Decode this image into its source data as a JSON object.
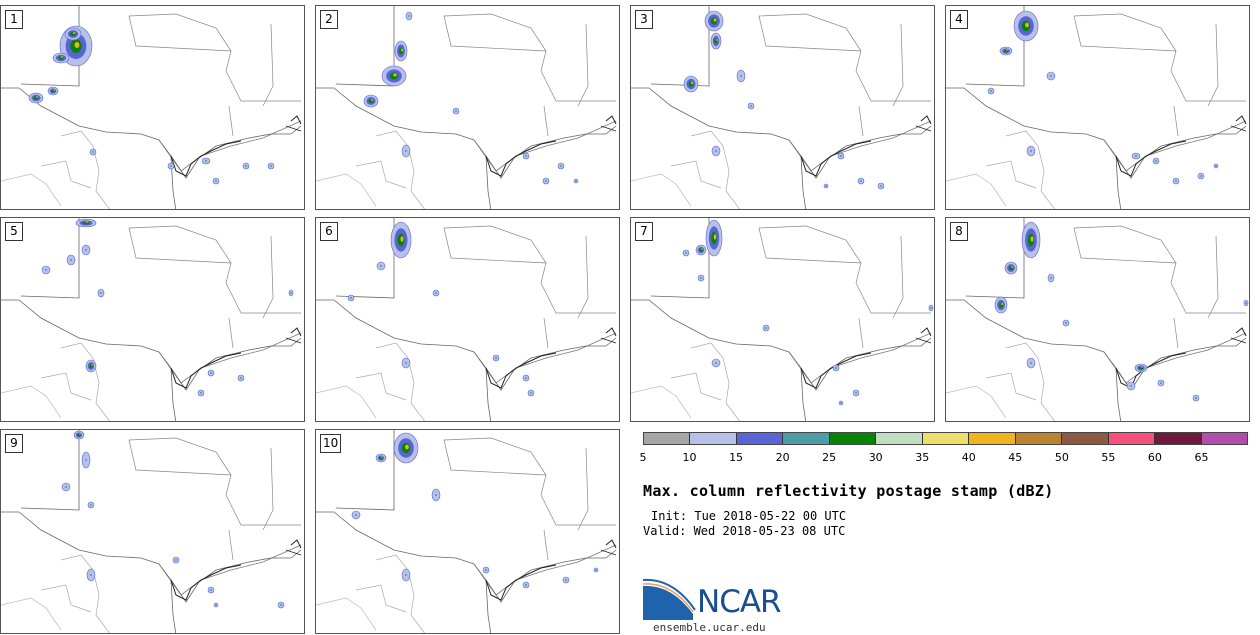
{
  "panels": [
    {
      "label": "1",
      "storms": [
        [
          75,
          40,
          16,
          20
        ],
        [
          35,
          92,
          7,
          5
        ],
        [
          72,
          28,
          8,
          6
        ],
        [
          60,
          52,
          8,
          5
        ],
        [
          52,
          85,
          5,
          4
        ],
        [
          92,
          146,
          3,
          3
        ],
        [
          205,
          155,
          4,
          3
        ],
        [
          215,
          175,
          3,
          3
        ],
        [
          245,
          160,
          3,
          3
        ],
        [
          270,
          160,
          3,
          3
        ],
        [
          170,
          160,
          3,
          3
        ]
      ]
    },
    {
      "label": "2",
      "storms": [
        [
          78,
          70,
          12,
          10
        ],
        [
          55,
          95,
          7,
          6
        ],
        [
          85,
          45,
          6,
          10
        ],
        [
          93,
          10,
          3,
          4
        ],
        [
          140,
          105,
          3,
          3
        ],
        [
          90,
          145,
          4,
          6
        ],
        [
          210,
          150,
          3,
          3
        ],
        [
          230,
          175,
          3,
          3
        ],
        [
          245,
          160,
          3,
          3
        ],
        [
          260,
          175,
          2,
          2
        ]
      ]
    },
    {
      "label": "3",
      "storms": [
        [
          83,
          15,
          9,
          10
        ],
        [
          85,
          35,
          5,
          8
        ],
        [
          60,
          78,
          7,
          8
        ],
        [
          110,
          70,
          4,
          6
        ],
        [
          120,
          100,
          3,
          3
        ],
        [
          85,
          145,
          4,
          5
        ],
        [
          210,
          150,
          3,
          3
        ],
        [
          230,
          175,
          3,
          3
        ],
        [
          195,
          180,
          2,
          2
        ],
        [
          250,
          180,
          3,
          3
        ]
      ]
    },
    {
      "label": "4",
      "storms": [
        [
          80,
          20,
          12,
          15
        ],
        [
          60,
          45,
          6,
          4
        ],
        [
          105,
          70,
          4,
          4
        ],
        [
          45,
          85,
          3,
          3
        ],
        [
          85,
          145,
          4,
          5
        ],
        [
          190,
          150,
          4,
          3
        ],
        [
          210,
          155,
          3,
          3
        ],
        [
          230,
          175,
          3,
          3
        ],
        [
          255,
          170,
          3,
          3
        ],
        [
          270,
          160,
          2,
          2
        ]
      ]
    },
    {
      "label": "5",
      "storms": [
        [
          85,
          5,
          10,
          4
        ],
        [
          85,
          32,
          4,
          5
        ],
        [
          70,
          42,
          4,
          5
        ],
        [
          45,
          52,
          4,
          4
        ],
        [
          100,
          75,
          3,
          4
        ],
        [
          90,
          148,
          5,
          6
        ],
        [
          210,
          155,
          3,
          3
        ],
        [
          240,
          160,
          3,
          3
        ],
        [
          200,
          175,
          3,
          3
        ],
        [
          290,
          75,
          2,
          3
        ]
      ]
    },
    {
      "label": "6",
      "storms": [
        [
          85,
          22,
          10,
          18
        ],
        [
          65,
          48,
          4,
          4
        ],
        [
          35,
          80,
          3,
          3
        ],
        [
          120,
          75,
          3,
          3
        ],
        [
          90,
          145,
          4,
          5
        ],
        [
          180,
          140,
          3,
          3
        ],
        [
          210,
          160,
          3,
          3
        ],
        [
          215,
          175,
          3,
          3
        ]
      ]
    },
    {
      "label": "7",
      "storms": [
        [
          83,
          20,
          8,
          18
        ],
        [
          70,
          32,
          5,
          5
        ],
        [
          55,
          35,
          3,
          3
        ],
        [
          70,
          60,
          3,
          3
        ],
        [
          135,
          110,
          3,
          3
        ],
        [
          85,
          145,
          4,
          4
        ],
        [
          205,
          150,
          3,
          3
        ],
        [
          225,
          175,
          3,
          3
        ],
        [
          210,
          185,
          2,
          2
        ],
        [
          300,
          90,
          2,
          3
        ]
      ]
    },
    {
      "label": "8",
      "storms": [
        [
          85,
          22,
          9,
          18
        ],
        [
          65,
          50,
          6,
          6
        ],
        [
          55,
          87,
          6,
          8
        ],
        [
          105,
          60,
          3,
          4
        ],
        [
          120,
          105,
          3,
          3
        ],
        [
          85,
          145,
          4,
          5
        ],
        [
          195,
          150,
          6,
          4
        ],
        [
          185,
          168,
          4,
          4
        ],
        [
          215,
          165,
          3,
          3
        ],
        [
          250,
          180,
          3,
          3
        ],
        [
          300,
          85,
          2,
          3
        ]
      ]
    },
    {
      "label": "9",
      "storms": [
        [
          78,
          5,
          5,
          4
        ],
        [
          85,
          30,
          4,
          8
        ],
        [
          65,
          57,
          4,
          4
        ],
        [
          90,
          75,
          3,
          3
        ],
        [
          90,
          145,
          4,
          6
        ],
        [
          175,
          130,
          3,
          3
        ],
        [
          210,
          160,
          3,
          3
        ],
        [
          280,
          175,
          3,
          3
        ],
        [
          215,
          175,
          2,
          2
        ]
      ]
    },
    {
      "label": "10",
      "storms": [
        [
          90,
          18,
          12,
          15
        ],
        [
          65,
          28,
          5,
          4
        ],
        [
          120,
          65,
          4,
          6
        ],
        [
          40,
          85,
          4,
          4
        ],
        [
          90,
          145,
          4,
          6
        ],
        [
          170,
          140,
          3,
          3
        ],
        [
          210,
          155,
          3,
          3
        ],
        [
          250,
          150,
          3,
          3
        ],
        [
          280,
          140,
          2,
          2
        ]
      ]
    }
  ],
  "colorbar": {
    "colors": [
      "#a6a6a6",
      "#b7c0e8",
      "#5965d6",
      "#4e9ca6",
      "#078407",
      "#c0dfc0",
      "#ecdf6b",
      "#f0b420",
      "#b98332",
      "#8b5a42",
      "#f5507e",
      "#6e1a3e",
      "#b14dac"
    ],
    "ticks": [
      "5",
      "10",
      "15",
      "20",
      "25",
      "30",
      "35",
      "40",
      "45",
      "50",
      "55",
      "60",
      "65"
    ]
  },
  "title": "Max. column reflectivity postage stamp (dBZ)",
  "init": "Init: Tue 2018-05-22 00 UTC",
  "valid": "Valid: Wed 2018-05-23 08 UTC",
  "logo": {
    "text": "NCAR",
    "url": "ensemble.ucar.edu",
    "color": "#1a4e8f"
  }
}
